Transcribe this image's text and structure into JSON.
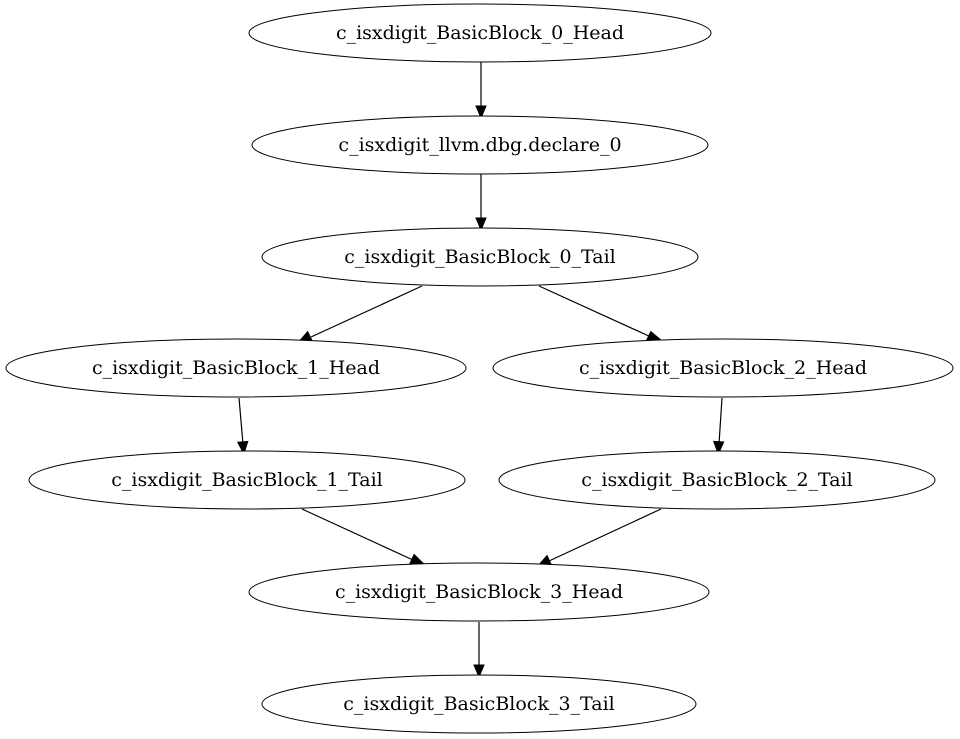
{
  "graph": {
    "nodes": [
      {
        "id": "b0h",
        "label": "c_isxdigit_BasicBlock_0_Head"
      },
      {
        "id": "dbg",
        "label": "c_isxdigit_llvm.dbg.declare_0"
      },
      {
        "id": "b0t",
        "label": "c_isxdigit_BasicBlock_0_Tail"
      },
      {
        "id": "b1h",
        "label": "c_isxdigit_BasicBlock_1_Head"
      },
      {
        "id": "b2h",
        "label": "c_isxdigit_BasicBlock_2_Head"
      },
      {
        "id": "b1t",
        "label": "c_isxdigit_BasicBlock_1_Tail"
      },
      {
        "id": "b2t",
        "label": "c_isxdigit_BasicBlock_2_Tail"
      },
      {
        "id": "b3h",
        "label": "c_isxdigit_BasicBlock_3_Head"
      },
      {
        "id": "b3t",
        "label": "c_isxdigit_BasicBlock_3_Tail"
      }
    ],
    "edges": [
      {
        "from": "b0h",
        "to": "dbg"
      },
      {
        "from": "dbg",
        "to": "b0t"
      },
      {
        "from": "b0t",
        "to": "b1h"
      },
      {
        "from": "b0t",
        "to": "b2h"
      },
      {
        "from": "b1h",
        "to": "b1t"
      },
      {
        "from": "b2h",
        "to": "b2t"
      },
      {
        "from": "b1t",
        "to": "b3h"
      },
      {
        "from": "b2t",
        "to": "b3h"
      },
      {
        "from": "b3h",
        "to": "b3t"
      }
    ]
  }
}
